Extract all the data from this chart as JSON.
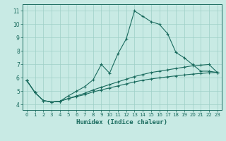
{
  "title": "",
  "xlabel": "Humidex (Indice chaleur)",
  "ylabel": "",
  "bg_color": "#c8eae4",
  "grid_color": "#9ecfc7",
  "line_color": "#1a6b5e",
  "xlim": [
    -0.5,
    23.5
  ],
  "ylim": [
    3.6,
    11.5
  ],
  "xticks": [
    0,
    1,
    2,
    3,
    4,
    5,
    6,
    7,
    8,
    9,
    10,
    11,
    12,
    13,
    14,
    15,
    16,
    17,
    18,
    19,
    20,
    21,
    22,
    23
  ],
  "yticks": [
    4,
    5,
    6,
    7,
    8,
    9,
    10,
    11
  ],
  "line1_x": [
    0,
    1,
    2,
    3,
    4,
    5,
    6,
    7,
    8,
    9,
    10,
    11,
    12,
    13,
    14,
    15,
    16,
    17,
    18,
    19,
    20,
    21,
    22,
    23
  ],
  "line1_y": [
    5.8,
    4.9,
    4.3,
    4.2,
    4.25,
    4.65,
    5.0,
    5.35,
    5.85,
    7.0,
    6.35,
    7.8,
    8.9,
    11.0,
    10.6,
    10.2,
    10.0,
    9.3,
    7.9,
    7.5,
    7.0,
    6.5,
    6.5,
    6.4
  ],
  "line2_x": [
    0,
    1,
    2,
    3,
    4,
    5,
    6,
    7,
    8,
    9,
    10,
    11,
    12,
    13,
    14,
    15,
    16,
    17,
    18,
    19,
    20,
    21,
    22,
    23
  ],
  "line2_y": [
    5.8,
    4.9,
    4.3,
    4.2,
    4.25,
    4.45,
    4.65,
    4.85,
    5.1,
    5.3,
    5.5,
    5.7,
    5.9,
    6.1,
    6.25,
    6.4,
    6.5,
    6.6,
    6.7,
    6.8,
    6.9,
    6.95,
    7.0,
    6.4
  ],
  "line3_x": [
    0,
    1,
    2,
    3,
    4,
    5,
    6,
    7,
    8,
    9,
    10,
    11,
    12,
    13,
    14,
    15,
    16,
    17,
    18,
    19,
    20,
    21,
    22,
    23
  ],
  "line3_y": [
    5.8,
    4.9,
    4.3,
    4.2,
    4.25,
    4.45,
    4.6,
    4.75,
    4.95,
    5.1,
    5.25,
    5.4,
    5.55,
    5.7,
    5.82,
    5.92,
    6.0,
    6.08,
    6.15,
    6.22,
    6.28,
    6.33,
    6.38,
    6.4
  ],
  "marker": "+",
  "markersize": 3,
  "linewidth": 0.8
}
